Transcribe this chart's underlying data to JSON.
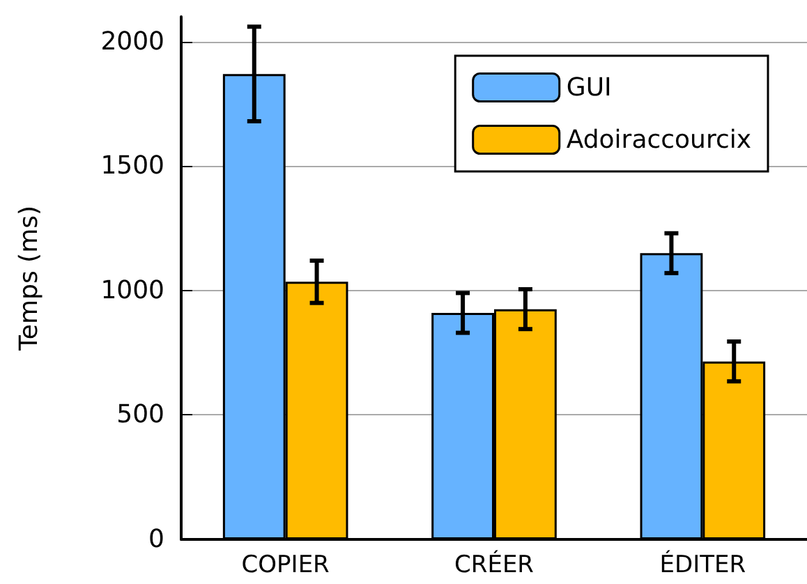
{
  "chart_data": {
    "type": "bar",
    "ylabel": "Temps (ms)",
    "categories": [
      "COPIER",
      "CRÉER",
      "ÉDITER"
    ],
    "series": [
      {
        "name": "GUI",
        "color": "#66b3ff",
        "values": [
          1870,
          910,
          1150
        ],
        "errors": [
          190,
          80,
          80
        ]
      },
      {
        "name": "Adoiraccourcix",
        "color": "#ffbb00",
        "values": [
          1035,
          925,
          715
        ],
        "errors": [
          85,
          80,
          80
        ]
      }
    ],
    "ylim": [
      0,
      2100
    ],
    "yticks": [
      0,
      500,
      1000,
      1500,
      2000
    ],
    "grid": "y",
    "legend": "top right"
  }
}
